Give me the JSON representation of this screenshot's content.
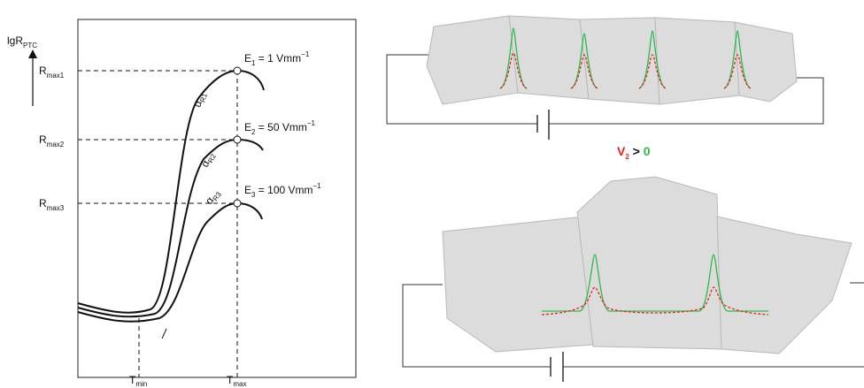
{
  "left_panel": {
    "y_axis_label": {
      "main": "lgR",
      "sub": "PTC"
    },
    "y_levels": [
      {
        "main": "R",
        "sub": "max1"
      },
      {
        "main": "R",
        "sub": "max2"
      },
      {
        "main": "R",
        "sub": "max3"
      }
    ],
    "curves": [
      {
        "field": {
          "main": "E",
          "sub": "1",
          "rest": " = 1 Vmm",
          "sup": "−1"
        },
        "slope": {
          "main": "α",
          "sub": "R1"
        }
      },
      {
        "field": {
          "main": "E",
          "sub": "2",
          "rest": " = 50 Vmm",
          "sup": "−1"
        },
        "slope": {
          "main": "α",
          "sub": "R2"
        }
      },
      {
        "field": {
          "main": "E",
          "sub": "3",
          "rest": " = 100 Vmm",
          "sup": "−1"
        },
        "slope": {
          "main": "α",
          "sub": "R3"
        }
      }
    ],
    "x_labels": [
      {
        "main": "T",
        "sub": "min"
      },
      {
        "main": "T",
        "sub": "max"
      }
    ]
  },
  "right_panel": {
    "condition": {
      "left": "V",
      "sub": "2",
      "op": " > ",
      "right": "0"
    }
  }
}
